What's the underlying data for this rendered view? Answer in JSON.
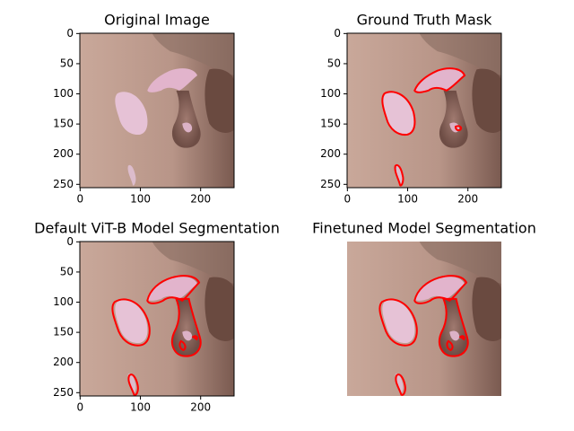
{
  "chart_data": [
    {
      "type": "image",
      "title": "Original Image",
      "xlim": [
        -0.5,
        255.5
      ],
      "ylim": [
        255.5,
        -0.5
      ],
      "xticks": [
        0,
        100,
        200
      ],
      "yticks": [
        0,
        50,
        100,
        150,
        200,
        250
      ]
    },
    {
      "type": "image",
      "title": "Ground Truth Mask",
      "xlim": [
        -0.5,
        255.5
      ],
      "ylim": [
        255.5,
        -0.5
      ],
      "xticks": [
        0,
        100,
        200
      ],
      "yticks": [
        0,
        50,
        100,
        150,
        200,
        250
      ]
    },
    {
      "type": "image",
      "title": "Default ViT-B Model Segmentation",
      "xlim": [
        -0.5,
        255.5
      ],
      "ylim": [
        255.5,
        -0.5
      ],
      "xticks": [
        0,
        100,
        200
      ],
      "yticks": [
        0,
        50,
        100,
        150,
        200,
        250
      ]
    },
    {
      "type": "image",
      "title": "Finetuned Model Segmentation",
      "xlim": [
        -0.5,
        255.5
      ],
      "ylim": [
        255.5,
        -0.5
      ]
    }
  ]
}
